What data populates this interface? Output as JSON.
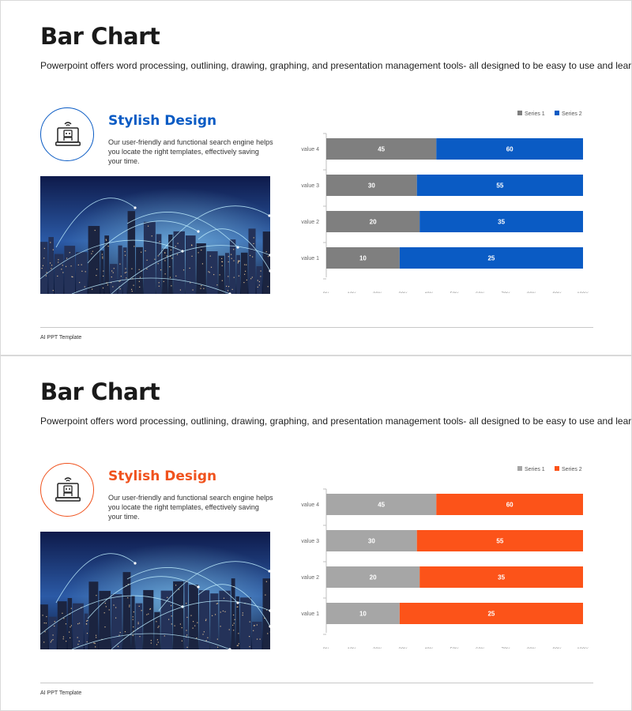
{
  "slides": [
    {
      "title": "Bar Chart",
      "subtitle": "Powerpoint offers word processing, outlining, drawing, graphing, and presentation management tools- all designed to be easy to use and learn.",
      "feature": {
        "title": "Stylish Design",
        "desc": "Our user-friendly and functional search engine helps you locate the right templates, effectively saving your time.",
        "icon": "robot-laptop-icon"
      },
      "footer": "AI PPT Template",
      "colors": {
        "accent": "#0a5bc4",
        "series1": "#7f7f7f",
        "series2": "#0a5bc4"
      }
    },
    {
      "title": "Bar Chart",
      "subtitle": "Powerpoint offers word processing, outlining, drawing, graphing, and presentation management tools- all designed to be easy to use and learn.",
      "feature": {
        "title": "Stylish Design",
        "desc": "Our user-friendly and functional search engine helps you locate the right templates, effectively saving your time.",
        "icon": "robot-laptop-icon"
      },
      "footer": "AI PPT Template",
      "colors": {
        "accent": "#f0521d",
        "series1": "#a6a6a6",
        "series2": "#fc5319"
      }
    }
  ],
  "chart_data": [
    {
      "type": "bar",
      "orientation": "horizontal",
      "stacking": "percent",
      "categories": [
        "value 1",
        "value 2",
        "value 3",
        "value 4"
      ],
      "series": [
        {
          "name": "Series 1",
          "values": [
            10,
            20,
            30,
            45
          ]
        },
        {
          "name": "Series 2",
          "values": [
            25,
            35,
            55,
            60
          ]
        }
      ],
      "xticks": [
        "0%",
        "10%",
        "20%",
        "30%",
        "40%",
        "50%",
        "60%",
        "70%",
        "80%",
        "90%",
        "100%"
      ],
      "xlim": [
        0,
        100
      ],
      "legend": "top-right",
      "grid": false
    },
    {
      "type": "bar",
      "orientation": "horizontal",
      "stacking": "percent",
      "categories": [
        "value 1",
        "value 2",
        "value 3",
        "value 4"
      ],
      "series": [
        {
          "name": "Series 1",
          "values": [
            10,
            20,
            30,
            45
          ]
        },
        {
          "name": "Series 2",
          "values": [
            25,
            35,
            55,
            60
          ]
        }
      ],
      "xticks": [
        "0%",
        "10%",
        "20%",
        "30%",
        "40%",
        "50%",
        "60%",
        "70%",
        "80%",
        "90%",
        "100%"
      ],
      "xlim": [
        0,
        100
      ],
      "legend": "top-right",
      "grid": false
    }
  ]
}
